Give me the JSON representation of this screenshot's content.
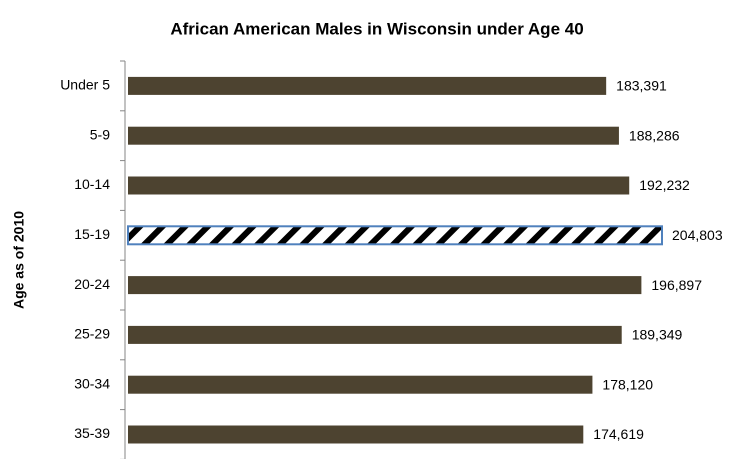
{
  "chart_data": {
    "type": "bar",
    "orientation": "horizontal",
    "title": "African American Males in Wisconsin under Age 40",
    "y_label": "Age as of 2010",
    "categories": [
      "Under 5",
      "5-9",
      "10-14",
      "15-19",
      "20-24",
      "25-29",
      "30-34",
      "35-39"
    ],
    "values": [
      183391,
      188286,
      192232,
      204803,
      196897,
      189349,
      178120,
      174619
    ],
    "value_labels": [
      "183,391",
      "188,286",
      "192,232",
      "204,803",
      "196,897",
      "189,349",
      "178,120",
      "174,619"
    ],
    "color": "#4d4330",
    "highlight": 3,
    "highlight_color": "#4f81bd"
  }
}
